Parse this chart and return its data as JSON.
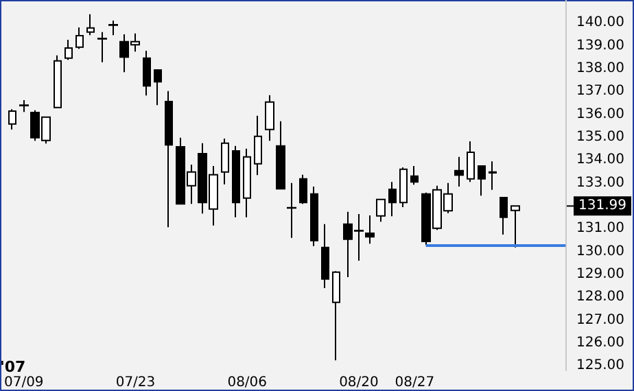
{
  "chart_data": {
    "type": "candlestick",
    "categories": [
      null,
      "07/09",
      null,
      null,
      null,
      null,
      null,
      null,
      null,
      null,
      null,
      "07/23",
      null,
      null,
      null,
      null,
      null,
      null,
      null,
      null,
      null,
      "08/06",
      null,
      null,
      null,
      null,
      null,
      null,
      null,
      null,
      null,
      "08/20",
      null,
      null,
      null,
      null,
      "08/27",
      null,
      null,
      null,
      null,
      null,
      null,
      null,
      null,
      null,
      null,
      null,
      null,
      null
    ],
    "ohlc": [
      [
        135.58,
        136.22,
        135.34,
        136.14
      ],
      [
        136.38,
        136.62,
        136.1,
        136.4
      ],
      [
        136.08,
        136.18,
        134.84,
        134.98
      ],
      [
        134.86,
        135.9,
        134.72,
        135.88
      ],
      [
        136.3,
        138.58,
        136.3,
        138.34
      ],
      [
        138.46,
        139.26,
        138.38,
        138.9
      ],
      [
        138.94,
        139.8,
        138.86,
        139.44
      ],
      [
        139.6,
        140.38,
        139.46,
        139.78
      ],
      [
        139.32,
        139.6,
        138.28,
        139.3
      ],
      [
        139.9,
        140.1,
        139.46,
        139.92
      ],
      [
        139.18,
        139.5,
        137.84,
        138.5
      ],
      [
        139.04,
        139.54,
        138.74,
        139.18
      ],
      [
        138.46,
        138.78,
        136.82,
        137.24
      ],
      [
        137.94,
        137.94,
        136.4,
        137.42
      ],
      [
        136.56,
        137.02,
        131.06,
        134.66
      ],
      [
        134.58,
        134.98,
        132.08,
        132.08
      ],
      [
        132.88,
        133.8,
        132.08,
        133.48
      ],
      [
        134.28,
        134.74,
        131.66,
        132.14
      ],
      [
        131.86,
        133.74,
        131.14,
        133.36
      ],
      [
        133.48,
        134.94,
        132.94,
        134.74
      ],
      [
        134.4,
        134.62,
        131.5,
        132.14
      ],
      [
        132.34,
        134.5,
        131.5,
        134.14
      ],
      [
        133.84,
        135.94,
        133.34,
        135.04
      ],
      [
        135.34,
        136.84,
        134.84,
        136.54
      ],
      [
        134.62,
        135.7,
        132.74,
        132.74
      ],
      [
        131.9,
        133.0,
        130.6,
        131.92
      ],
      [
        133.18,
        133.36,
        132.08,
        132.14
      ],
      [
        132.52,
        132.84,
        130.24,
        130.48
      ],
      [
        130.18,
        131.2,
        128.4,
        128.8
      ],
      [
        127.78,
        129.14,
        125.24,
        129.1
      ],
      [
        131.2,
        131.74,
        128.88,
        130.54
      ],
      [
        130.9,
        131.64,
        129.6,
        130.92
      ],
      [
        130.8,
        131.58,
        130.34,
        130.64
      ],
      [
        131.56,
        132.28,
        131.3,
        132.28
      ],
      [
        132.72,
        133.04,
        131.54,
        132.14
      ],
      [
        132.14,
        133.68,
        131.94,
        133.6
      ],
      [
        133.3,
        133.74,
        132.92,
        133.04
      ],
      [
        132.52,
        132.58,
        130.28,
        130.44
      ],
      [
        131.02,
        132.88,
        130.94,
        132.7
      ],
      [
        131.78,
        133.0,
        131.68,
        132.52
      ],
      [
        133.54,
        134.14,
        132.84,
        133.34
      ],
      [
        133.18,
        134.82,
        133.04,
        134.34
      ],
      [
        133.74,
        133.74,
        132.44,
        133.18
      ],
      [
        133.48,
        133.94,
        132.7,
        133.44
      ],
      [
        132.36,
        132.36,
        130.74,
        131.5
      ],
      [
        131.8,
        131.99,
        130.18,
        131.99
      ],
      null,
      null,
      null,
      null
    ],
    "ylim": [
      124.8,
      141
    ],
    "yticks": [
      {
        "value": 125,
        "label": "125.00"
      },
      {
        "value": 126,
        "label": "126.00"
      },
      {
        "value": 127,
        "label": "127.00"
      },
      {
        "value": 128,
        "label": "128.00"
      },
      {
        "value": 129,
        "label": "129.00"
      },
      {
        "value": 130,
        "label": "130.00"
      },
      {
        "value": 131,
        "label": "131.00"
      },
      {
        "value": 132,
        "label": null
      },
      {
        "value": 133,
        "label": "133.00"
      },
      {
        "value": 134,
        "label": "134.00"
      },
      {
        "value": 135,
        "label": "135.00"
      },
      {
        "value": 136,
        "label": "136.00"
      },
      {
        "value": 137,
        "label": "137.00"
      },
      {
        "value": 138,
        "label": "138.00"
      },
      {
        "value": 139,
        "label": "139.00"
      },
      {
        "value": 140,
        "label": "140.00"
      }
    ],
    "ref_lines": [
      {
        "axis": "y",
        "value": 130.28,
        "color": "#3a7be0"
      }
    ],
    "annotations": [
      "'07",
      "131.99"
    ],
    "grid": false
  }
}
